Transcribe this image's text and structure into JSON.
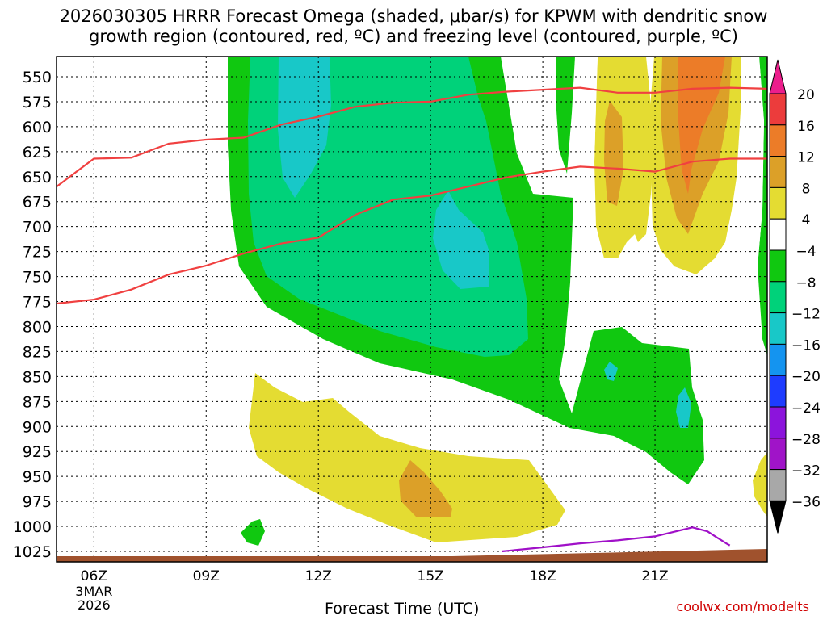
{
  "title_line1": "2026030305 HRRR Forecast Omega (shaded, μbar/s) for KPWM with dendritic snow",
  "title_line2": "growth region (contoured, red, ºC) and freezing level (contoured, purple, ºC)",
  "credit": "coolwx.com/modelts",
  "chart_data": {
    "type": "heatmap",
    "title": "2026030305 HRRR Forecast Omega (shaded, μbar/s) for KPWM with dendritic snow growth region (contoured, red, ºC) and freezing level (contoured, purple, ºC)",
    "xlabel": "Forecast Time (UTC)",
    "x_axis": {
      "start": "2026-03-03 05Z",
      "end": "2026-03-04 00Z",
      "ticks": [
        "06Z",
        "09Z",
        "12Z",
        "15Z",
        "18Z",
        "21Z"
      ],
      "first_tick_sublabels": [
        "3MAR",
        "2026"
      ]
    },
    "y_axis": {
      "unit": "hPa",
      "orientation": "reversed",
      "ticks": [
        550,
        575,
        600,
        625,
        650,
        675,
        700,
        725,
        750,
        775,
        800,
        825,
        850,
        875,
        900,
        925,
        950,
        975,
        1000,
        1025
      ]
    },
    "grid": "dotted",
    "colorbar": {
      "labels": [
        20,
        16,
        12,
        8,
        4,
        -4,
        -8,
        -12,
        -16,
        -20,
        -24,
        -28,
        -32,
        -36
      ],
      "colors": [
        "#ec3c3c",
        "#ec7c28",
        "#dca028",
        "#e4dc32",
        "#ffffff",
        "#10c810",
        "#00d27a",
        "#18c8c8",
        "#1494f0",
        "#1e3cff",
        "#8c14dc",
        "#a014c8",
        "#a8a8a8"
      ],
      "top_arrow_color": "#ec1e8c",
      "bottom_arrow_color": "#000000"
    },
    "series": [
      {
        "name": "dendritic snow growth region (upper contour)",
        "color": "#f04040",
        "points": [
          [
            5.0,
            660
          ],
          [
            6.0,
            632
          ],
          [
            7.0,
            631
          ],
          [
            8.0,
            617
          ],
          [
            9.0,
            613
          ],
          [
            10.0,
            611
          ],
          [
            11.0,
            598
          ],
          [
            12.0,
            590
          ],
          [
            13.0,
            580
          ],
          [
            14.0,
            576
          ],
          [
            15.0,
            575
          ],
          [
            16.0,
            568
          ],
          [
            17.0,
            565
          ],
          [
            18.0,
            563
          ],
          [
            19.0,
            561
          ],
          [
            20.0,
            566
          ],
          [
            21.0,
            566
          ],
          [
            22.0,
            562
          ],
          [
            23.0,
            561
          ],
          [
            24.0,
            562
          ]
        ]
      },
      {
        "name": "dendritic snow growth region (lower contour)",
        "color": "#f04040",
        "points": [
          [
            5.0,
            777
          ],
          [
            6.0,
            773
          ],
          [
            7.0,
            763
          ],
          [
            8.0,
            748
          ],
          [
            9.0,
            739
          ],
          [
            10.0,
            727
          ],
          [
            11.0,
            717
          ],
          [
            12.0,
            711
          ],
          [
            13.0,
            688
          ],
          [
            14.0,
            673
          ],
          [
            15.0,
            669
          ],
          [
            16.0,
            660
          ],
          [
            17.0,
            651
          ],
          [
            18.0,
            645
          ],
          [
            19.0,
            640
          ],
          [
            20.0,
            642
          ],
          [
            21.0,
            645
          ],
          [
            22.0,
            635
          ],
          [
            23.0,
            632
          ],
          [
            24.0,
            632
          ]
        ]
      },
      {
        "name": "freezing level (0 ºC)",
        "color": "#a010c8",
        "points": [
          [
            16.9,
            1025
          ],
          [
            18.0,
            1021
          ],
          [
            19.0,
            1017
          ],
          [
            20.0,
            1014
          ],
          [
            21.0,
            1010
          ],
          [
            22.0,
            1001
          ],
          [
            22.4,
            1005
          ],
          [
            22.9,
            1017
          ],
          [
            23.0,
            1019
          ]
        ]
      }
    ],
    "surface_color": "#a0522d"
  }
}
